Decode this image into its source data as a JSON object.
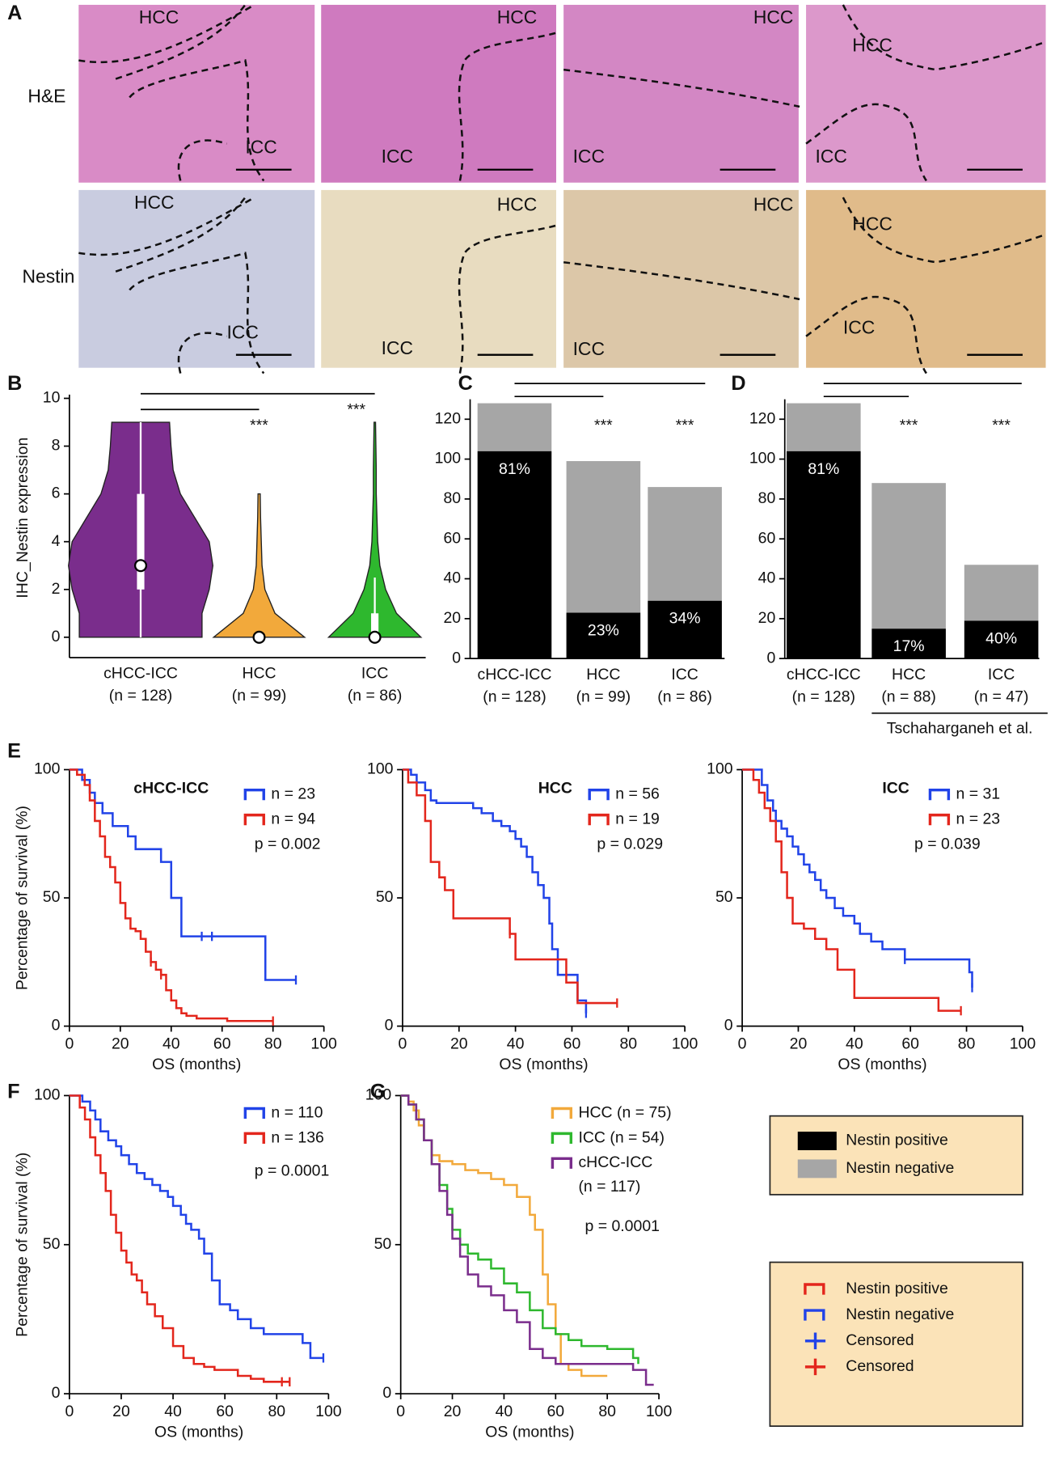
{
  "panel_labels": [
    "A",
    "B",
    "C",
    "D",
    "E",
    "F",
    "G"
  ],
  "panel_a": {
    "rows": [
      "H&E",
      "Nestin"
    ],
    "image_labels": [
      [
        "HCC",
        "ICC"
      ],
      [
        "HCC",
        "ICC"
      ],
      [
        "HCC",
        "ICC"
      ],
      [
        "HCC",
        "ICC"
      ],
      [
        "HCC",
        "ICC"
      ],
      [
        "HCC",
        "ICC"
      ],
      [
        "HCC",
        "ICC"
      ],
      [
        "HCC",
        "ICC"
      ]
    ]
  },
  "chart_data": [
    {
      "type": "violin",
      "ylabel": "IHC_Nestin expression",
      "categories": [
        "cHCC-ICC",
        "HCC",
        "ICC"
      ],
      "n_labels": [
        "(n = 128)",
        "(n = 99)",
        "(n = 86)"
      ],
      "ylim": [
        0,
        10
      ],
      "yticks": [
        0,
        2,
        4,
        6,
        8,
        10
      ],
      "density_levels": [
        0,
        1,
        2,
        3,
        4,
        5,
        6,
        7,
        8,
        9
      ],
      "violins": [
        {
          "color": "#7a2d8c",
          "density": [
            0.85,
            0.85,
            0.95,
            1.0,
            0.95,
            0.75,
            0.55,
            0.45,
            0.42,
            0.4
          ],
          "median": 3,
          "q1": 2,
          "q3": 6,
          "whisker_low": 0,
          "whisker_high": 9
        },
        {
          "color": "#f2a93b",
          "density": [
            0.63,
            0.22,
            0.08,
            0.04,
            0.03,
            0.02,
            0.015,
            0,
            0,
            0
          ],
          "median": 0,
          "q1": 0,
          "q3": 0,
          "whisker_low": 0,
          "whisker_high": 0
        },
        {
          "color": "#2eb82e",
          "density": [
            0.64,
            0.3,
            0.15,
            0.07,
            0.04,
            0.03,
            0.02,
            0.02,
            0.015,
            0.01
          ],
          "median": 0,
          "q1": 0,
          "q3": 1,
          "whisker_low": 0,
          "whisker_high": 2.5
        }
      ],
      "comparisons": [
        [
          0,
          1
        ],
        [
          0,
          2
        ]
      ],
      "annotations": [
        "***",
        "***"
      ]
    },
    {
      "type": "stacked_bar",
      "categories": [
        "cHCC-ICC",
        "HCC",
        "ICC"
      ],
      "n_labels": [
        "(n = 128)",
        "(n = 99)",
        "(n = 86)"
      ],
      "ylim": [
        0,
        130
      ],
      "yticks": [
        0,
        20,
        40,
        60,
        80,
        100,
        120
      ],
      "series": [
        {
          "color": "#000000",
          "values": [
            104,
            23,
            29
          ]
        },
        {
          "color": "#a6a6a6",
          "values": [
            24,
            76,
            57
          ]
        }
      ],
      "percent_labels": [
        "81%",
        "23%",
        "34%"
      ],
      "comparisons": [
        [
          0,
          1
        ],
        [
          0,
          2
        ]
      ],
      "annotations": [
        "***",
        "***"
      ]
    },
    {
      "type": "stacked_bar",
      "categories": [
        "cHCC-ICC",
        "HCC",
        "ICC"
      ],
      "n_labels": [
        "(n = 128)",
        "(n = 88)",
        "(n = 47)"
      ],
      "ylim": [
        0,
        130
      ],
      "yticks": [
        0,
        20,
        40,
        60,
        80,
        100,
        120
      ],
      "series": [
        {
          "color": "#000000",
          "values": [
            104,
            15,
            19
          ]
        },
        {
          "color": "#a6a6a6",
          "values": [
            24,
            73,
            28
          ]
        }
      ],
      "percent_labels": [
        "81%",
        "17%",
        "40%"
      ],
      "comparisons": [
        [
          0,
          1
        ],
        [
          0,
          2
        ]
      ],
      "annotations": [
        "***",
        "***"
      ],
      "footnote": "Tschaharganeh et al."
    },
    {
      "type": "km",
      "title": "cHCC-ICC",
      "xlabel": "OS (months)",
      "ylabel": "Percentage of survival (%)",
      "xlim": [
        0,
        100
      ],
      "xticks": [
        0,
        20,
        40,
        60,
        80,
        100
      ],
      "ylim": [
        0,
        100
      ],
      "yticks": [
        0,
        50,
        100
      ],
      "series": [
        {
          "name": "n = 23",
          "color": "#2143e8",
          "x": [
            0,
            5,
            8,
            10,
            13,
            17,
            23,
            26,
            36,
            40,
            44,
            77,
            89
          ],
          "values": [
            100,
            96,
            91,
            87,
            83,
            78,
            74,
            69,
            64,
            50,
            35,
            18,
            18
          ],
          "censored_x": [
            52,
            56,
            89
          ]
        },
        {
          "name": "n = 94",
          "color": "#e3261c",
          "x": [
            0,
            3,
            6,
            8,
            10,
            12,
            14,
            16,
            18,
            20,
            22,
            24,
            26,
            28,
            30,
            32,
            34,
            36,
            38,
            40,
            42,
            44,
            46,
            50,
            55,
            60,
            62,
            80
          ],
          "values": [
            100,
            98,
            94,
            88,
            80,
            74,
            66,
            62,
            56,
            48,
            42,
            38,
            37,
            34,
            29,
            25,
            22,
            20,
            14,
            10,
            7,
            5,
            4,
            3,
            3,
            3,
            2,
            2
          ],
          "censored_x": [
            32,
            36,
            80
          ]
        }
      ],
      "p_label": "p = 0.002"
    },
    {
      "type": "km",
      "title": "HCC",
      "xlabel": "OS (months)",
      "xlim": [
        0,
        100
      ],
      "xticks": [
        0,
        20,
        40,
        60,
        80,
        100
      ],
      "ylim": [
        0,
        100
      ],
      "yticks": [
        0,
        50,
        100
      ],
      "series": [
        {
          "name": "n = 56",
          "color": "#2143e8",
          "x": [
            0,
            3,
            5,
            8,
            10,
            12,
            22,
            25,
            28,
            32,
            35,
            38,
            40,
            42,
            44,
            46,
            48,
            50,
            52,
            53,
            55,
            62,
            65
          ],
          "values": [
            100,
            98,
            95,
            92,
            88,
            87,
            87,
            85,
            83,
            80,
            78,
            76,
            73,
            70,
            66,
            60,
            55,
            50,
            40,
            30,
            20,
            10,
            5
          ],
          "censored_x": [
            65
          ]
        },
        {
          "name": "n = 19",
          "color": "#e3261c",
          "x": [
            0,
            2,
            5,
            8,
            10,
            13,
            15,
            18,
            27,
            38,
            40,
            58,
            62,
            76
          ],
          "values": [
            100,
            95,
            90,
            80,
            64,
            58,
            53,
            42,
            42,
            36,
            26,
            17,
            9,
            9
          ],
          "censored_x": [
            38,
            76
          ]
        }
      ],
      "p_label": "p = 0.029"
    },
    {
      "type": "km",
      "title": "ICC",
      "xlabel": "OS (months)",
      "xlim": [
        0,
        100
      ],
      "xticks": [
        0,
        20,
        40,
        60,
        80,
        100
      ],
      "ylim": [
        0,
        100
      ],
      "yticks": [
        0,
        50,
        100
      ],
      "series": [
        {
          "name": "n = 31",
          "color": "#2143e8",
          "x": [
            0,
            7,
            9,
            11,
            12,
            14,
            16,
            18,
            20,
            22,
            24,
            26,
            28,
            30,
            33,
            36,
            40,
            42,
            46,
            50,
            58,
            81,
            82
          ],
          "values": [
            100,
            94,
            88,
            84,
            80,
            77,
            74,
            70,
            67,
            63,
            60,
            57,
            53,
            50,
            46,
            43,
            40,
            36,
            33,
            30,
            26,
            21,
            15
          ],
          "censored_x": [
            58,
            82
          ]
        },
        {
          "name": "n = 23",
          "color": "#e3261c",
          "x": [
            0,
            4,
            6,
            8,
            10,
            12,
            14,
            16,
            18,
            22,
            26,
            30,
            34,
            40,
            70,
            72,
            78
          ],
          "values": [
            100,
            96,
            91,
            85,
            80,
            72,
            60,
            50,
            40,
            38,
            34,
            30,
            22,
            11,
            6,
            6,
            6
          ],
          "censored_x": [
            78
          ]
        }
      ],
      "p_label": "p = 0.039"
    },
    {
      "type": "km",
      "xlabel": "OS (months)",
      "ylabel": "Percentage of survival (%)",
      "xlim": [
        0,
        100
      ],
      "xticks": [
        0,
        20,
        40,
        60,
        80,
        100
      ],
      "ylim": [
        0,
        100
      ],
      "yticks": [
        0,
        50,
        100
      ],
      "series": [
        {
          "name": "n = 110",
          "color": "#2143e8",
          "x": [
            0,
            5,
            8,
            10,
            12,
            15,
            18,
            20,
            23,
            26,
            29,
            32,
            35,
            38,
            40,
            43,
            45,
            47,
            50,
            52,
            55,
            58,
            62,
            65,
            70,
            75,
            80,
            90,
            93,
            98
          ],
          "values": [
            100,
            98,
            95,
            92,
            88,
            85,
            83,
            80,
            77,
            74,
            72,
            70,
            68,
            66,
            63,
            60,
            57,
            55,
            52,
            47,
            38,
            30,
            28,
            25,
            22,
            20,
            20,
            17,
            12,
            12
          ],
          "censored_x": [
            98
          ]
        },
        {
          "name": "n = 136",
          "color": "#e3261c",
          "x": [
            0,
            4,
            6,
            8,
            10,
            12,
            14,
            16,
            18,
            20,
            22,
            24,
            26,
            28,
            30,
            33,
            36,
            40,
            44,
            48,
            52,
            56,
            60,
            65,
            70,
            75,
            80,
            85
          ],
          "values": [
            100,
            96,
            92,
            86,
            80,
            74,
            68,
            60,
            54,
            48,
            44,
            40,
            38,
            34,
            30,
            26,
            22,
            16,
            12,
            10,
            9,
            8,
            8,
            6,
            5,
            4,
            4,
            4
          ],
          "censored_x": [
            82,
            85
          ]
        }
      ],
      "p_label": "p = 0.0001"
    },
    {
      "type": "km",
      "xlabel": "OS (months)",
      "xlim": [
        0,
        100
      ],
      "xticks": [
        0,
        20,
        40,
        60,
        80,
        100
      ],
      "ylim": [
        0,
        100
      ],
      "yticks": [
        0,
        50,
        100
      ],
      "series": [
        {
          "name": "HCC (n = 75)",
          "color": "#f2a93b",
          "x": [
            0,
            3,
            5,
            7,
            9,
            12,
            15,
            20,
            25,
            30,
            35,
            40,
            45,
            50,
            52,
            55,
            57,
            60,
            62,
            65,
            70,
            80
          ],
          "values": [
            100,
            98,
            95,
            90,
            85,
            80,
            78,
            77,
            75,
            74,
            72,
            70,
            66,
            60,
            55,
            40,
            30,
            20,
            10,
            8,
            6,
            6
          ]
        },
        {
          "name": "ICC (n = 54)",
          "color": "#2eb82e",
          "x": [
            0,
            3,
            6,
            9,
            12,
            15,
            18,
            20,
            23,
            26,
            30,
            35,
            40,
            45,
            50,
            55,
            60,
            65,
            70,
            80,
            90,
            92
          ],
          "values": [
            100,
            97,
            92,
            85,
            77,
            70,
            62,
            55,
            50,
            47,
            45,
            42,
            37,
            34,
            28,
            22,
            20,
            18,
            16,
            15,
            12,
            10
          ]
        },
        {
          "name": "cHCC-ICC",
          "name_note": "(n = 117)",
          "color": "#7a2d8c",
          "x": [
            0,
            3,
            6,
            9,
            12,
            15,
            18,
            20,
            23,
            26,
            30,
            35,
            40,
            45,
            50,
            55,
            60,
            70,
            80,
            90,
            95,
            98
          ],
          "values": [
            100,
            97,
            92,
            85,
            77,
            68,
            60,
            52,
            46,
            40,
            36,
            33,
            28,
            24,
            15,
            12,
            10,
            10,
            10,
            8,
            3,
            3
          ]
        }
      ],
      "p_label": "p = 0.0001"
    }
  ],
  "legend_boxes": [
    {
      "entries": [
        {
          "name": "Nestin positive",
          "color": "#000000",
          "marker": "swatch"
        },
        {
          "name": "Nestin negative",
          "color": "#a6a6a6",
          "marker": "swatch"
        }
      ]
    },
    {
      "entries": [
        {
          "name": "Nestin positive",
          "color": "#e3261c",
          "marker": "step"
        },
        {
          "name": "Nestin negative",
          "color": "#2143e8",
          "marker": "step"
        },
        {
          "name": "Censored",
          "color": "#2143e8",
          "marker": "censor"
        },
        {
          "name": "Censored",
          "color": "#e3261c",
          "marker": "censor"
        }
      ]
    }
  ]
}
